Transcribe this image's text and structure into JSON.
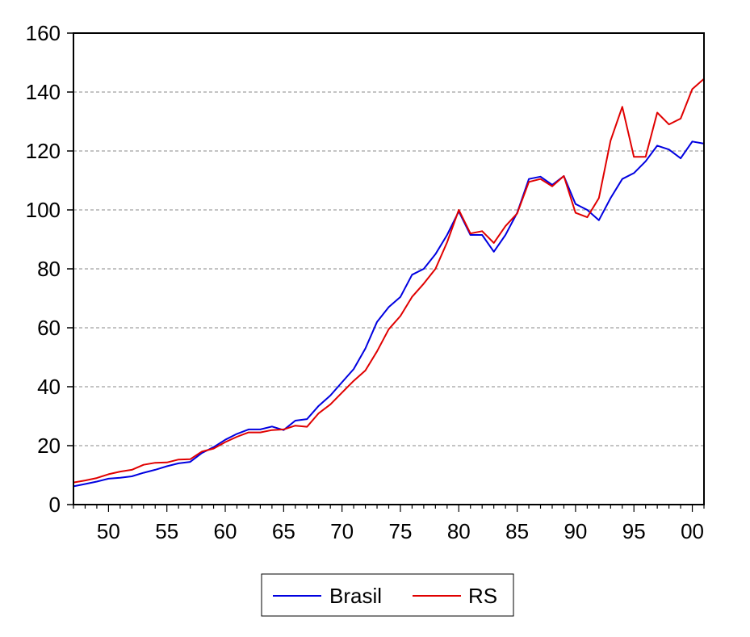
{
  "chart_data": {
    "type": "line",
    "title": "",
    "xlabel": "",
    "ylabel": "",
    "x": [
      1947,
      1948,
      1949,
      1950,
      1951,
      1952,
      1953,
      1954,
      1955,
      1956,
      1957,
      1958,
      1959,
      1960,
      1961,
      1962,
      1963,
      1964,
      1965,
      1966,
      1967,
      1968,
      1969,
      1970,
      1971,
      1972,
      1973,
      1974,
      1975,
      1976,
      1977,
      1978,
      1979,
      1980,
      1981,
      1982,
      1983,
      1984,
      1985,
      1986,
      1987,
      1988,
      1989,
      1990,
      1991,
      1992,
      1993,
      1994,
      1995,
      1996,
      1997,
      1998,
      1999,
      2000,
      2001
    ],
    "xlim": [
      1947,
      2001
    ],
    "ylim": [
      0,
      160
    ],
    "x_ticks": [
      1950,
      1955,
      1960,
      1965,
      1970,
      1975,
      1980,
      1985,
      1990,
      1995,
      2000
    ],
    "x_tick_labels": [
      "50",
      "55",
      "60",
      "65",
      "70",
      "75",
      "80",
      "85",
      "90",
      "95",
      "00"
    ],
    "y_ticks": [
      0,
      20,
      40,
      60,
      80,
      100,
      120,
      140,
      160
    ],
    "y_tick_labels": [
      "0",
      "20",
      "40",
      "60",
      "80",
      "100",
      "120",
      "140",
      "160"
    ],
    "grid": "horizontal dashed",
    "legend_position": "bottom-center",
    "series": [
      {
        "name": "Brasil",
        "color": "#0000e0",
        "values": [
          6.2,
          7.0,
          7.8,
          8.8,
          9.1,
          9.6,
          10.8,
          11.8,
          13.0,
          14.0,
          14.5,
          17.5,
          19.5,
          22.0,
          24.0,
          25.5,
          25.5,
          26.5,
          25.3,
          28.5,
          29.0,
          33.5,
          37.0,
          41.5,
          46.0,
          53.0,
          62.0,
          67.0,
          70.5,
          78.0,
          80.0,
          85.0,
          91.5,
          99.5,
          91.5,
          91.5,
          85.8,
          91.5,
          99.0,
          110.5,
          111.3,
          108.5,
          111.5,
          102.0,
          100.0,
          96.5,
          104.0,
          110.5,
          112.5,
          116.5,
          121.8,
          120.5,
          117.5,
          123.2,
          122.5
        ]
      },
      {
        "name": "RS",
        "color": "#e00000",
        "values": [
          7.5,
          8.2,
          9.0,
          10.3,
          11.2,
          11.8,
          13.5,
          14.2,
          14.3,
          15.3,
          15.4,
          18.0,
          19.0,
          21.2,
          23.0,
          24.5,
          24.5,
          25.3,
          25.5,
          26.8,
          26.4,
          31.0,
          34.0,
          38.0,
          42.0,
          45.5,
          52.0,
          59.5,
          64.0,
          70.5,
          75.0,
          80.0,
          89.0,
          100.0,
          92.0,
          92.8,
          88.8,
          94.5,
          98.8,
          109.5,
          110.5,
          108.0,
          111.5,
          99.0,
          97.5,
          104.0,
          123.5,
          135.0,
          118.0,
          118.0,
          133.0,
          129.0,
          131.0,
          141.0,
          144.5
        ]
      }
    ]
  }
}
